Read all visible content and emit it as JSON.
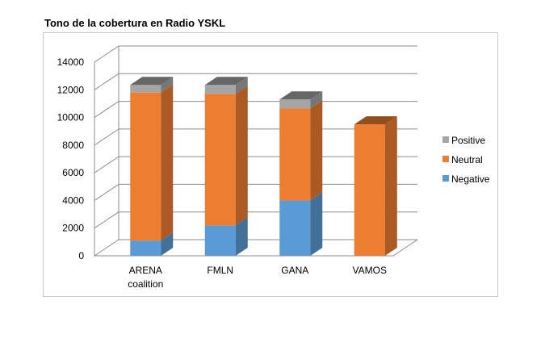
{
  "title": "Tono de la cobertura en Radio YSKL",
  "chart_data": {
    "type": "bar",
    "stacked": true,
    "three_d": true,
    "categories": [
      "ARENA\ncoalition",
      "FMLN",
      "GANA",
      "VAMOS"
    ],
    "series": [
      {
        "name": "Negative",
        "color": "#5b9bd5",
        "values": [
          1100,
          2200,
          4000,
          0
        ]
      },
      {
        "name": "Neutral",
        "color": "#ed7d31",
        "values": [
          10700,
          9500,
          6650,
          9500
        ]
      },
      {
        "name": "Positive",
        "color": "#a5a5a5",
        "values": [
          550,
          650,
          650,
          0
        ]
      }
    ],
    "ylim": [
      0,
      14000
    ],
    "yticks": [
      0,
      2000,
      4000,
      6000,
      8000,
      10000,
      12000,
      14000
    ],
    "grid": true,
    "legend": "right",
    "legend_order": [
      "Positive",
      "Neutral",
      "Negative"
    ]
  }
}
